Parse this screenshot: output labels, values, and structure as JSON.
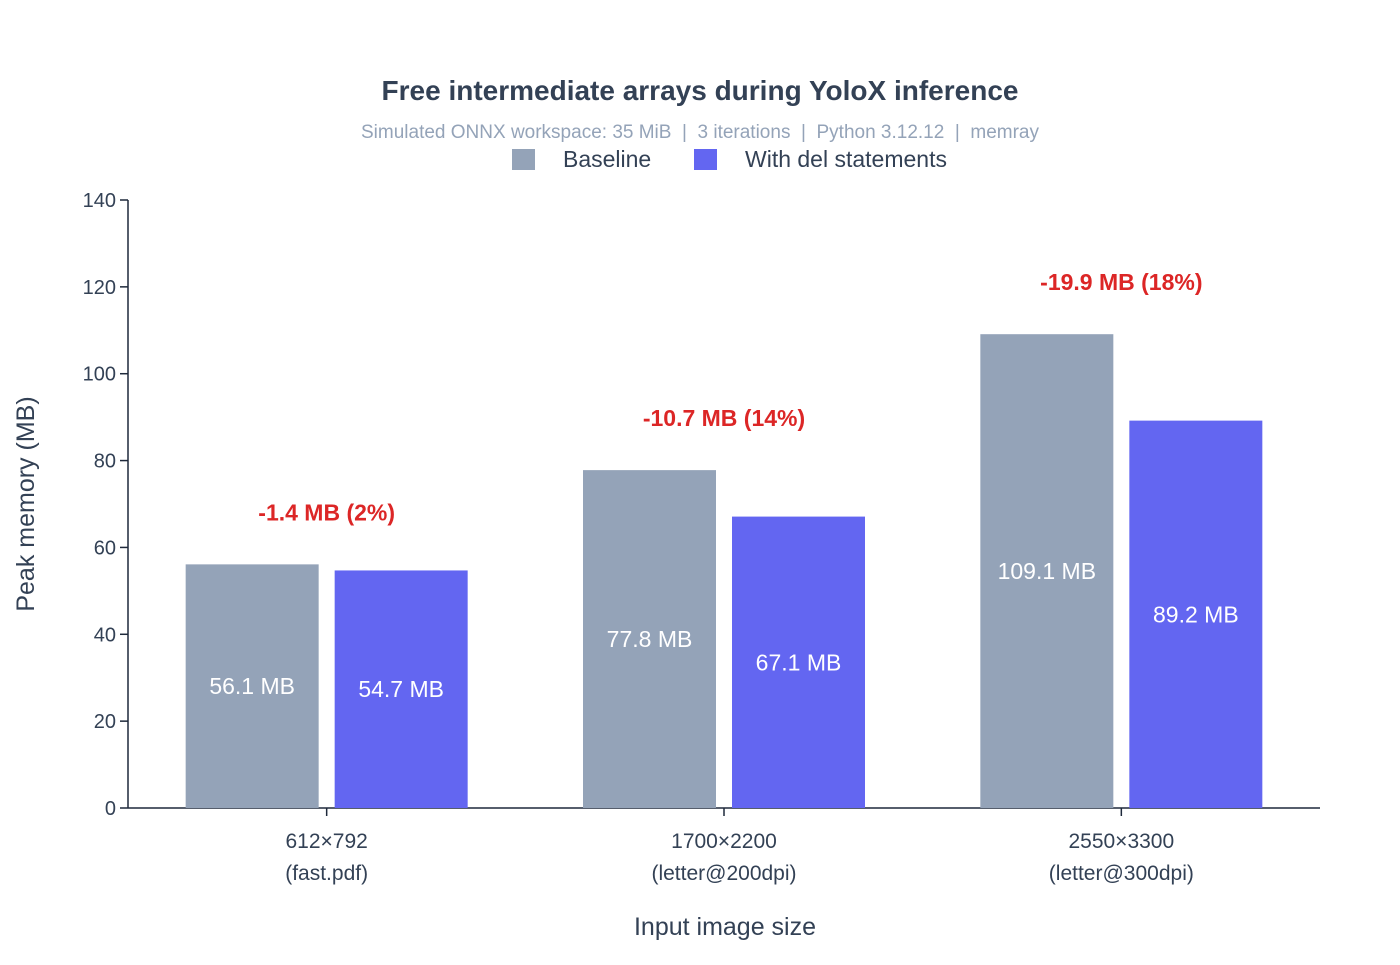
{
  "chart_data": {
    "type": "bar",
    "title": "Free intermediate arrays during YoloX inference",
    "subtitle": "Simulated ONNX workspace: 35 MiB  |  3 iterations  |  Python 3.12.12  |  memray",
    "xlabel": "Input image size",
    "ylabel": "Peak memory (MB)",
    "ylim": [
      0,
      140
    ],
    "yticks": [
      0,
      20,
      40,
      60,
      80,
      100,
      120,
      140
    ],
    "grid": false,
    "legend_position": "top-center",
    "categories": [
      [
        "612×792",
        "(fast.pdf)"
      ],
      [
        "1700×2200",
        "(letter@200dpi)"
      ],
      [
        "2550×3300",
        "(letter@300dpi)"
      ]
    ],
    "series": [
      {
        "name": "Baseline",
        "color": "#94a3b8",
        "values": [
          56.1,
          77.8,
          109.1
        ],
        "labels": [
          "56.1 MB",
          "77.8 MB",
          "109.1 MB"
        ]
      },
      {
        "name": "With del statements",
        "color": "#6366f1",
        "values": [
          54.7,
          67.1,
          89.2
        ],
        "labels": [
          "54.7 MB",
          "67.1 MB",
          "89.2 MB"
        ]
      }
    ],
    "annotations": [
      "-1.4 MB (2%)",
      "-10.7 MB (14%)",
      "-19.9 MB (18%)"
    ],
    "annotation_color": "#dc2626",
    "title_color": "#334155",
    "subtitle_color": "#94a3b8",
    "axis_color": "#1e293b",
    "bar_label_color": "#ffffff"
  }
}
